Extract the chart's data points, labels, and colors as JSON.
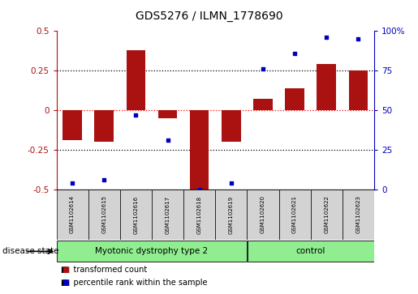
{
  "title": "GDS5276 / ILMN_1778690",
  "samples": [
    "GSM1102614",
    "GSM1102615",
    "GSM1102616",
    "GSM1102617",
    "GSM1102618",
    "GSM1102619",
    "GSM1102620",
    "GSM1102621",
    "GSM1102622",
    "GSM1102623"
  ],
  "bar_values": [
    -0.19,
    -0.2,
    0.38,
    -0.05,
    -0.5,
    -0.2,
    0.07,
    0.14,
    0.29,
    0.25
  ],
  "dot_values": [
    4,
    6,
    47,
    31,
    0,
    4,
    76,
    86,
    96,
    95
  ],
  "bar_color": "#aa1111",
  "dot_color": "#0000bb",
  "ylim_left": [
    -0.5,
    0.5
  ],
  "ylim_right": [
    0,
    100
  ],
  "yticks_left": [
    -0.5,
    -0.25,
    0,
    0.25,
    0.5
  ],
  "ytick_labels_left": [
    "-0.5",
    "-0.25",
    "0",
    "0.25",
    "0.5"
  ],
  "yticks_right": [
    0,
    25,
    50,
    75,
    100
  ],
  "ytick_labels_right": [
    "0",
    "25",
    "50",
    "75",
    "100%"
  ],
  "groups": [
    {
      "label": "Myotonic dystrophy type 2",
      "start": 0,
      "end": 6,
      "color": "#90EE90"
    },
    {
      "label": "control",
      "start": 6,
      "end": 10,
      "color": "#90EE90"
    }
  ],
  "disease_state_label": "disease state",
  "legend_items": [
    {
      "label": "transformed count",
      "color": "#aa1111"
    },
    {
      "label": "percentile rank within the sample",
      "color": "#0000bb"
    }
  ],
  "sample_box_color": "#d3d3d3",
  "figsize": [
    5.15,
    3.63
  ],
  "dpi": 100
}
